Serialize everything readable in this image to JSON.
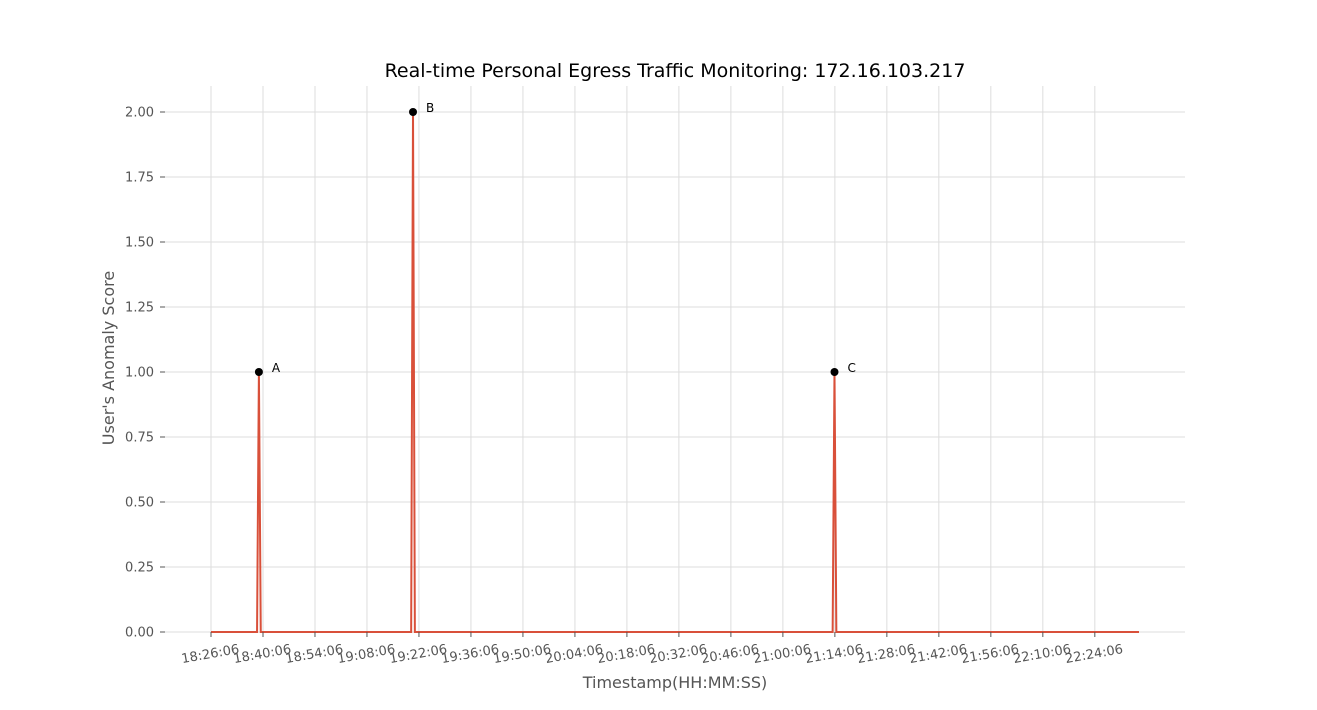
{
  "chart_data": {
    "type": "line",
    "title": "Real-time Personal Egress Traffic Monitoring: 172.16.103.217",
    "xlabel": "Timestamp(HH:MM:SS)",
    "ylabel": "User's Anomaly Score",
    "x_ticks": [
      "18:26:06",
      "18:40:06",
      "18:54:06",
      "19:08:06",
      "19:22:06",
      "19:36:06",
      "19:50:06",
      "20:04:06",
      "20:18:06",
      "20:32:06",
      "20:46:06",
      "21:00:06",
      "21:14:06",
      "21:28:06",
      "21:42:06",
      "21:56:06",
      "22:10:06",
      "22:24:06"
    ],
    "y_ticks": [
      "0.00",
      "0.25",
      "0.50",
      "0.75",
      "1.00",
      "1.25",
      "1.50",
      "1.75",
      "2.00"
    ],
    "xlim": [
      "18:26:06",
      "22:36:00"
    ],
    "ylim": [
      0,
      2.1
    ],
    "grid": true,
    "colors": {
      "line": "#d9503a",
      "point": "#000000",
      "grid": "#dddddd",
      "text": "#555555"
    },
    "series": [
      {
        "x": [
          "18:26:06",
          "18:38:00",
          "18:38:30",
          "18:39:00",
          "18:39:30",
          "18:40:00",
          "19:19:30",
          "19:20:00",
          "19:20:30",
          "19:21:00",
          "19:21:30",
          "21:13:00",
          "21:13:30",
          "21:14:00",
          "21:14:30",
          "21:15:00",
          "22:36:00"
        ],
        "y": [
          0,
          0,
          0,
          1,
          0,
          0,
          0,
          0,
          2,
          0,
          0,
          0,
          0,
          1,
          0,
          0,
          0
        ]
      }
    ],
    "annotations": [
      {
        "label": "A",
        "x": "18:39:00",
        "y": 1
      },
      {
        "label": "B",
        "x": "19:20:30",
        "y": 2
      },
      {
        "label": "C",
        "x": "21:14:00",
        "y": 1
      }
    ]
  }
}
